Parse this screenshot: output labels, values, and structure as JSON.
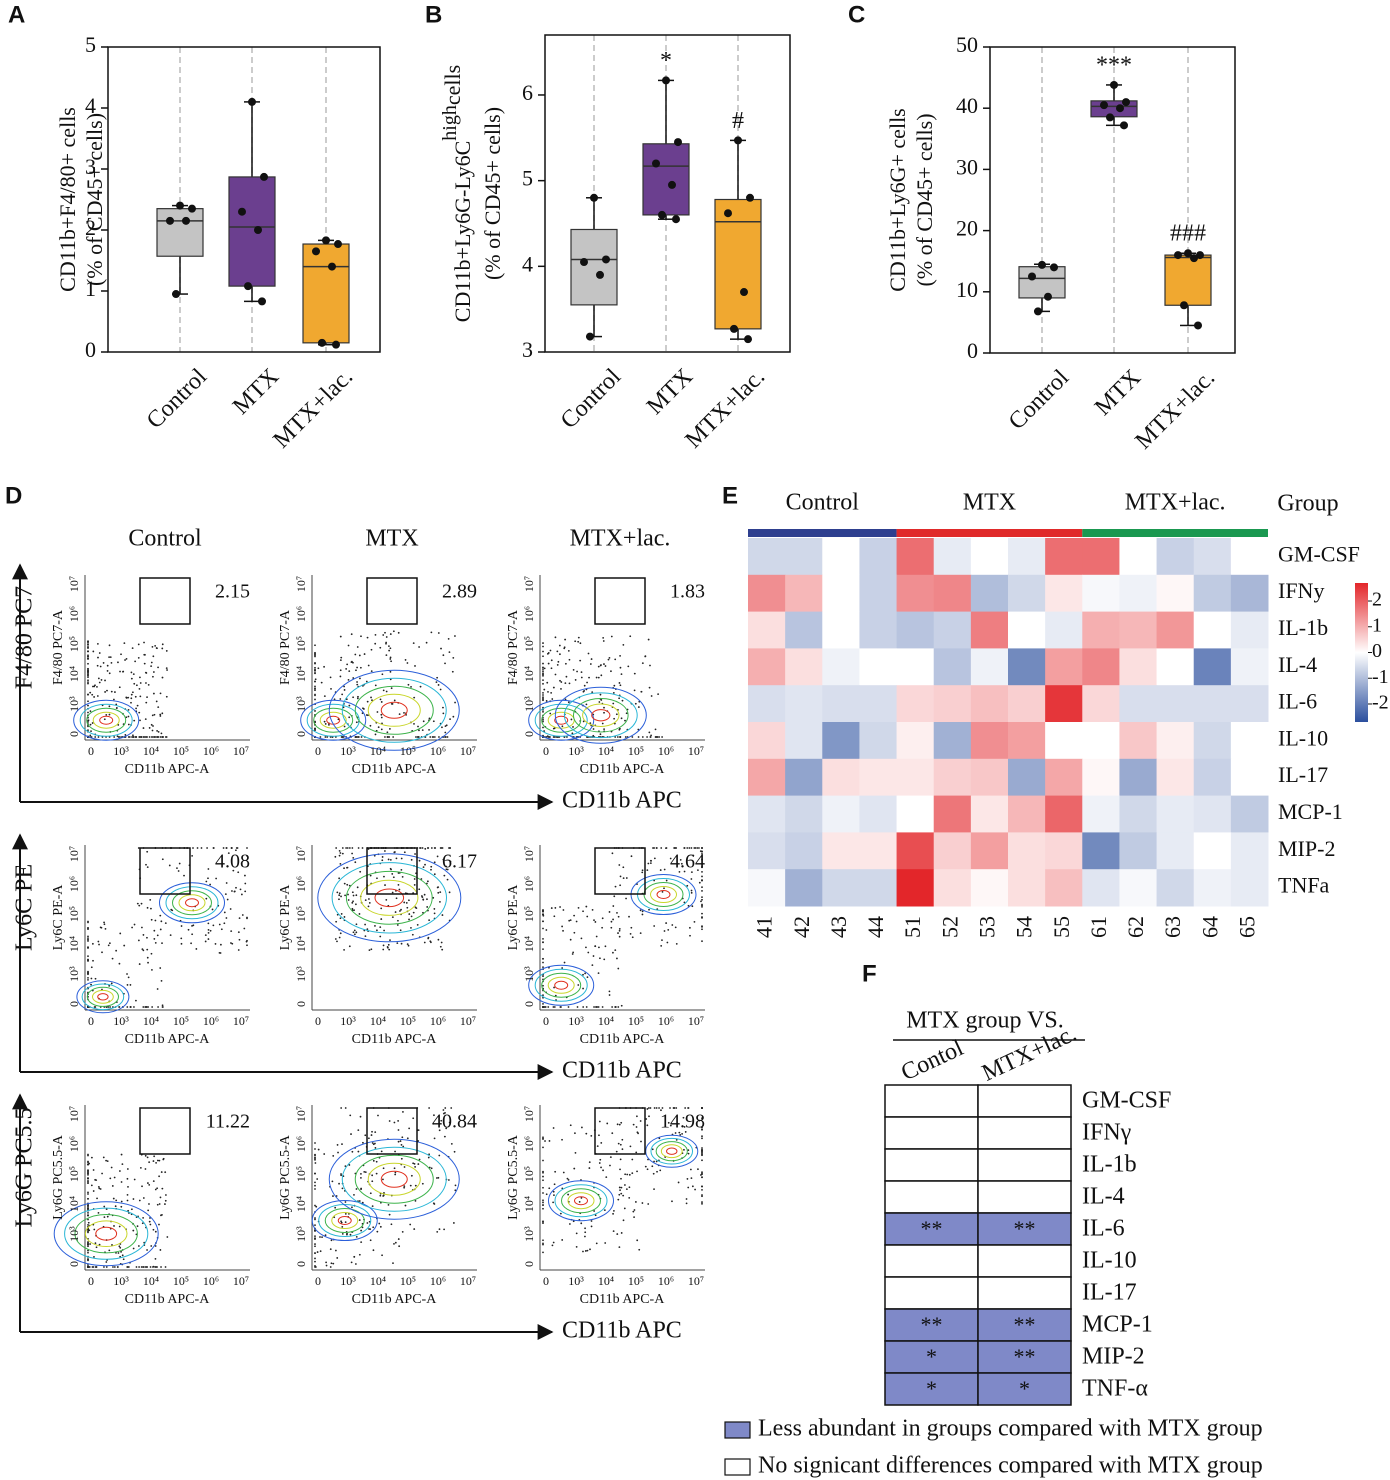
{
  "chart_data": [
    {
      "type": "box",
      "panel": "A",
      "ylabel": [
        "CD11b+F4/80+ cells",
        "(% of CD45+ cells)"
      ],
      "categories": [
        "Control",
        "MTX",
        "MTX+lac."
      ],
      "colors": [
        "#c4c4c4",
        "#6b3f8f",
        "#f0a830"
      ],
      "ylim": [
        0,
        5
      ],
      "yticks": [
        0,
        1,
        2,
        3,
        4,
        5
      ],
      "boxes": [
        {
          "min": 0.95,
          "q1": 1.57,
          "median": 2.15,
          "q3": 2.35,
          "max": 2.4,
          "points": [
            2.4,
            2.35,
            2.15,
            2.15,
            0.95
          ]
        },
        {
          "min": 0.83,
          "q1": 1.08,
          "median": 2.05,
          "q3": 2.87,
          "max": 4.1,
          "points": [
            4.1,
            2.87,
            2.3,
            2.0,
            1.08,
            0.83
          ]
        },
        {
          "min": 0.12,
          "q1": 0.15,
          "median": 1.4,
          "q3": 1.77,
          "max": 1.83,
          "points": [
            1.83,
            1.77,
            1.65,
            1.4,
            0.15,
            0.12
          ]
        }
      ],
      "annotations": [
        null,
        null,
        null
      ]
    },
    {
      "type": "box",
      "panel": "B",
      "ylabel": [
        "CD11b+Ly6G-Ly6C",
        "(% of CD45+ cells)"
      ],
      "ylabel_sup": "high",
      "ylabel_tail": "cells",
      "categories": [
        "Control",
        "MTX",
        "MTX+lac."
      ],
      "colors": [
        "#c4c4c4",
        "#6b3f8f",
        "#f0a830"
      ],
      "ylim": [
        3,
        6.7
      ],
      "yticks": [
        3,
        4,
        5,
        6
      ],
      "boxes": [
        {
          "min": 3.18,
          "q1": 3.55,
          "median": 4.08,
          "q3": 4.43,
          "max": 4.8,
          "points": [
            4.8,
            4.08,
            4.05,
            3.9,
            3.18
          ]
        },
        {
          "min": 4.55,
          "q1": 4.6,
          "median": 5.17,
          "q3": 5.43,
          "max": 6.17,
          "points": [
            6.17,
            5.45,
            5.2,
            4.95,
            4.6,
            4.55
          ]
        },
        {
          "min": 3.15,
          "q1": 3.27,
          "median": 4.52,
          "q3": 4.78,
          "max": 5.47,
          "points": [
            5.47,
            4.8,
            4.62,
            3.7,
            3.27,
            3.15
          ]
        }
      ],
      "annotations": [
        null,
        "*",
        "#"
      ]
    },
    {
      "type": "box",
      "panel": "C",
      "ylabel": [
        "CD11b+Ly6G+ cells",
        "(% of CD45+ cells)"
      ],
      "categories": [
        "Control",
        "MTX",
        "MTX+lac."
      ],
      "colors": [
        "#c4c4c4",
        "#6b3f8f",
        "#f0a830"
      ],
      "ylim": [
        0,
        50
      ],
      "yticks": [
        0,
        10,
        20,
        30,
        40,
        50
      ],
      "boxes": [
        {
          "min": 6.8,
          "q1": 9.0,
          "median": 12.2,
          "q3": 14.1,
          "max": 14.5,
          "points": [
            14.4,
            14,
            12.5,
            9.2,
            6.8
          ]
        },
        {
          "min": 37.2,
          "q1": 38.6,
          "median": 40.3,
          "q3": 41.2,
          "max": 43.8,
          "points": [
            43.8,
            41,
            40.5,
            40,
            38.5,
            37.2
          ]
        },
        {
          "min": 4.5,
          "q1": 7.8,
          "median": 15.6,
          "q3": 16.0,
          "max": 16.3,
          "points": [
            16.3,
            16,
            16,
            15.5,
            7.8,
            4.5
          ]
        }
      ],
      "annotations": [
        null,
        "***",
        "###"
      ]
    },
    {
      "type": "heatmap",
      "panel": "E",
      "group_label": "Group",
      "groups": [
        {
          "name": "Control",
          "color": "#2e3f8f",
          "columns": [
            "41",
            "42",
            "43",
            "44"
          ]
        },
        {
          "name": "MTX",
          "color": "#e02a2a",
          "columns": [
            "51",
            "52",
            "53",
            "54",
            "55"
          ]
        },
        {
          "name": "MTX+lac.",
          "color": "#1a9850",
          "columns": [
            "61",
            "62",
            "63",
            "64",
            "65"
          ]
        }
      ],
      "rows": [
        "GM-CSF",
        "IFNy",
        "IL-1b",
        "IL-4",
        "IL-6",
        "IL-10",
        "IL-17",
        "MCP-1",
        "MIP-2",
        "TNFa"
      ],
      "values": [
        [
          -0.6,
          -0.6,
          0,
          -0.7,
          1.8,
          -0.3,
          0,
          -0.3,
          1.8,
          1.8,
          0,
          -0.7,
          -0.5,
          0
        ],
        [
          1.4,
          0.9,
          0,
          -0.7,
          1.4,
          1.5,
          -1.0,
          -0.6,
          0.3,
          -0.1,
          -0.2,
          0.1,
          -0.8,
          -1.1
        ],
        [
          0.4,
          -0.9,
          0,
          -0.7,
          -0.9,
          -0.7,
          1.6,
          0,
          -0.3,
          1.0,
          0.9,
          1.3,
          0,
          -0.3
        ],
        [
          1.0,
          0.4,
          -0.2,
          0,
          0,
          -0.9,
          -0.2,
          -1.8,
          1.2,
          1.5,
          0.4,
          0,
          -1.9,
          -0.2
        ],
        [
          -0.5,
          -0.4,
          -0.5,
          -0.5,
          0.5,
          0.6,
          0.8,
          0.6,
          2.5,
          0.5,
          -0.5,
          -0.5,
          -0.5,
          -0.5
        ],
        [
          0.5,
          -0.4,
          -1.6,
          -0.6,
          0.2,
          -1.2,
          1.4,
          1.2,
          0,
          0,
          0.7,
          0.2,
          -0.6,
          0
        ],
        [
          1.1,
          -1.4,
          0.4,
          0.3,
          0.3,
          0.6,
          0.7,
          -1.3,
          1.1,
          0.1,
          -1.3,
          0.3,
          -0.7,
          0
        ],
        [
          -0.4,
          -0.6,
          -0.2,
          -0.4,
          0,
          1.7,
          0.3,
          0.9,
          1.9,
          -0.2,
          -0.6,
          -0.3,
          -0.4,
          -0.8
        ],
        [
          -0.5,
          -0.7,
          0.3,
          0.3,
          2.2,
          0.6,
          1.2,
          0.4,
          0.5,
          -1.8,
          -0.8,
          -0.3,
          0,
          -0.3
        ],
        [
          -0.1,
          -1.2,
          -0.6,
          -0.6,
          2.7,
          0.4,
          0.1,
          0.4,
          0.8,
          -0.4,
          -0.1,
          -0.6,
          -0.2,
          -0.3
        ]
      ],
      "clim": [
        -2.7,
        2.7
      ],
      "colorbar_ticks": [
        2,
        1,
        0,
        -1,
        -2
      ],
      "colors": [
        "#2b4f9e",
        "#ffffff",
        "#e3262a"
      ]
    }
  ],
  "flow": {
    "panel": "D",
    "columns": [
      "Control",
      "MTX",
      "MTX+lac."
    ],
    "x_axis": "CD11b APC",
    "inner_xlabel": "CD11b APC-A",
    "ticks": [
      "0",
      "10³",
      "10⁴",
      "10⁵",
      "10⁶",
      "10⁷"
    ],
    "rows": [
      {
        "ylabel": "F4/80 PC7",
        "inner_ylabel": "F4/80 PC7-A",
        "gates": [
          2.15,
          2.89,
          1.83
        ]
      },
      {
        "ylabel": "Ly6C PE",
        "inner_ylabel": "Ly6C PE-A",
        "gates": [
          4.08,
          6.17,
          4.64
        ]
      },
      {
        "ylabel": "Ly6G PC5.5",
        "inner_ylabel": "Ly6G PC5.5-A",
        "gates": [
          11.22,
          40.84,
          14.98
        ]
      }
    ]
  },
  "table": {
    "panel": "F",
    "title": "MTX group VS.",
    "columns": [
      "Contol",
      "MTX+lac."
    ],
    "highlight_color": "#7f89c8",
    "rows": [
      {
        "name": "GM-CSF",
        "cells": [
          null,
          null
        ]
      },
      {
        "name": "IFNγ",
        "cells": [
          null,
          null
        ]
      },
      {
        "name": "IL-1b",
        "cells": [
          null,
          null
        ]
      },
      {
        "name": "IL-4",
        "cells": [
          null,
          null
        ]
      },
      {
        "name": "IL-6",
        "cells": [
          "**",
          "**"
        ]
      },
      {
        "name": "IL-10",
        "cells": [
          null,
          null
        ]
      },
      {
        "name": "IL-17",
        "cells": [
          null,
          null
        ]
      },
      {
        "name": "MCP-1",
        "cells": [
          "**",
          "**"
        ]
      },
      {
        "name": "MIP-2",
        "cells": [
          "*",
          "**"
        ]
      },
      {
        "name": "TNF-α",
        "cells": [
          "*",
          "*"
        ]
      }
    ],
    "legend": [
      "Less abundant in groups compared with MTX group",
      "No signicant differences compared with MTX group"
    ]
  }
}
